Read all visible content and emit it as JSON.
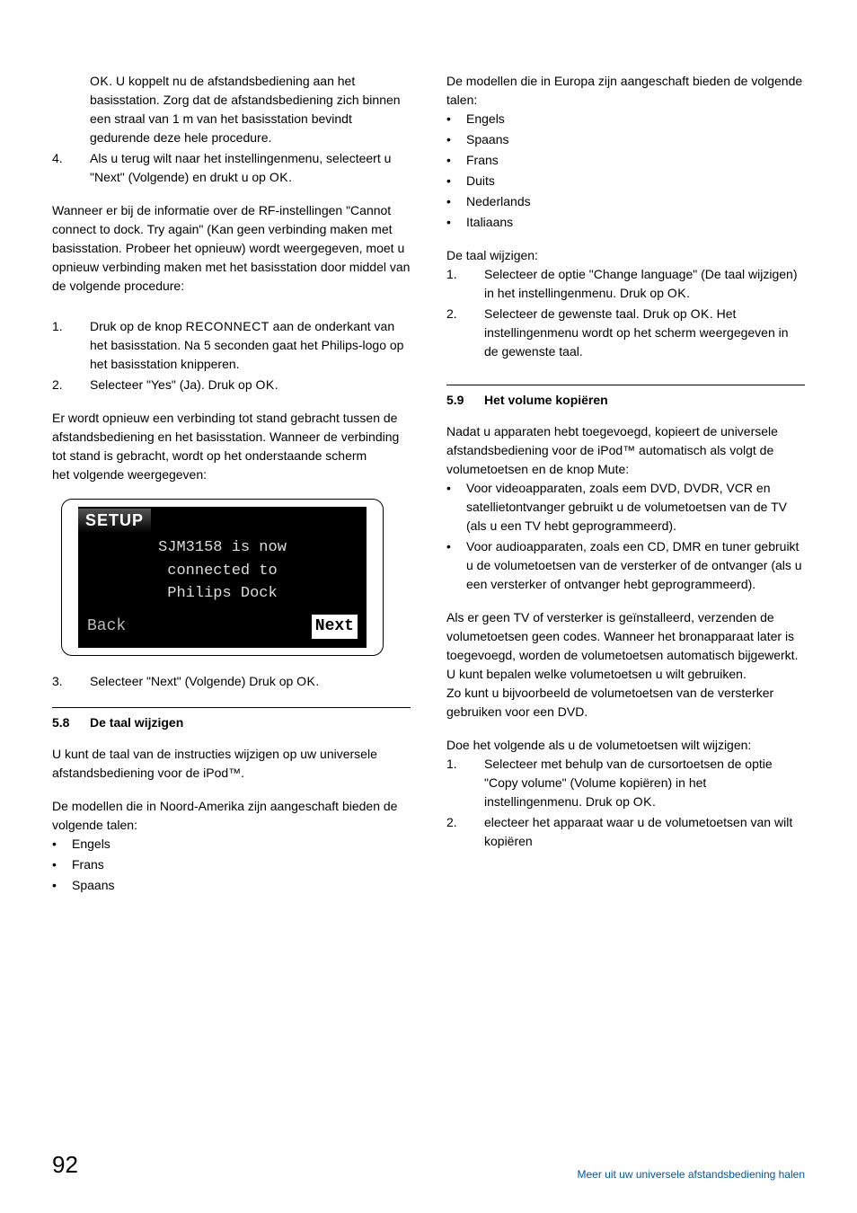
{
  "left": {
    "p1_items": [
      {
        "num": "",
        "indented": true,
        "text": "<span class='ok'>OK</span>. U koppelt nu de afstandsbediening aan het basisstation. Zorg dat de afstandsbediening zich binnen een straal van 1 m van het basisstation bevindt gedurende deze hele procedure."
      },
      {
        "num": "4.",
        "text": "Als u terug wilt naar het instellingenmenu, selecteert u \"Next\" (Volgende) en drukt u op <span class='ok'>OK</span>."
      }
    ],
    "p2": "Wanneer er bij de informatie over de RF-instellingen \"Cannot connect to dock. Try again\" (Kan geen verbinding maken met basisstation. Probeer het opnieuw) wordt weergegeven, moet u opnieuw verbinding maken met het basisstation door middel van de volgende procedure:",
    "p3_items": [
      {
        "num": "1.",
        "text": "Druk op de knop <span class='ok'>RECONNECT</span> aan de onderkant van het basisstation. Na 5 seconden gaat het Philips-logo op het basisstation knipperen."
      },
      {
        "num": "2.",
        "text": "Selecteer \"Yes\" (Ja). Druk op <span class='ok'>OK</span>."
      }
    ],
    "p4": "Er wordt opnieuw een verbinding tot stand gebracht tussen de afstandsbediening en het basisstation. Wanneer de verbinding tot stand is gebracht, wordt op het onderstaande scherm",
    "p4b": "het volgende weergegeven:",
    "screen": {
      "title": "SETUP",
      "l1": "SJM3158 is now",
      "l2": "connected to",
      "l3": "Philips Dock",
      "back": "Back",
      "next": "Next"
    },
    "p5_items": [
      {
        "num": "3.",
        "text": "Selecteer \"Next\" (Volgende) Druk op <span class='ok'>OK</span>."
      }
    ],
    "sec58_num": "5.8",
    "sec58_title": "De taal wijzigen",
    "p6": "U kunt de taal van de instructies wijzigen op uw universele afstandsbediening voor de iPod™.",
    "p7": "De modellen die in Noord-Amerika zijn aangeschaft bieden de volgende talen:",
    "p7_bullets": [
      "Engels",
      "Frans",
      "Spaans"
    ]
  },
  "right": {
    "p1": "De modellen die in Europa zijn aangeschaft bieden de volgende talen:",
    "p1_bullets": [
      "Engels",
      "Spaans",
      "Frans",
      "Duits",
      "Nederlands",
      "Italiaans"
    ],
    "p2_lead": "De taal wijzigen:",
    "p2_items": [
      {
        "num": "1.",
        "text": "Selecteer de optie \"Change language\" (De taal wijzigen) in het instellingenmenu. Druk op <span class='ok'>OK</span>."
      },
      {
        "num": "2.",
        "text": "Selecteer de gewenste taal. Druk op <span class='ok'>OK</span>. Het instellingenmenu wordt op het scherm weergegeven in de gewenste taal."
      }
    ],
    "sec59_num": "5.9",
    "sec59_title": "Het volume kopiëren",
    "p3": "Nadat u apparaten hebt toegevoegd, kopieert de universele afstandsbediening voor de iPod™ automatisch als volgt de volumetoetsen en de knop Mute:",
    "p3_bullets": [
      "Voor videoapparaten, zoals eem DVD, DVDR, VCR en satellietontvanger gebruikt u de volumetoetsen van de TV (als u een TV hebt geprogrammeerd).",
      "Voor audioapparaten, zoals een CD, DMR en tuner gebruikt u de volumetoetsen van de versterker of de ontvanger (als u een versterker of ontvanger hebt geprogrammeerd)."
    ],
    "p4": "Als er geen TV of versterker is geïnstalleerd, verzenden de volumetoetsen geen codes. Wanneer het bronapparaat later is toegevoegd, worden de volumetoetsen automatisch bijgewerkt. U kunt bepalen welke volumetoetsen u wilt gebruiken.",
    "p4b": "Zo kunt u bijvoorbeeld de volumetoetsen van de versterker gebruiken voor een DVD.",
    "p5": "Doe het volgende als u de volumetoetsen wilt wijzigen:",
    "p5_items": [
      {
        "num": "1.",
        "text": "Selecteer met behulp van de cursortoetsen de optie \"Copy volume\" (Volume kopiëren) in het instellingenmenu. Druk op <span class='ok'>OK</span>."
      },
      {
        "num": "2.",
        "text": "electeer het apparaat waar u de volumetoetsen van wilt kopiëren"
      }
    ]
  },
  "footer": {
    "page": "92",
    "link": "Meer uit uw universele afstandsbediening halen"
  }
}
